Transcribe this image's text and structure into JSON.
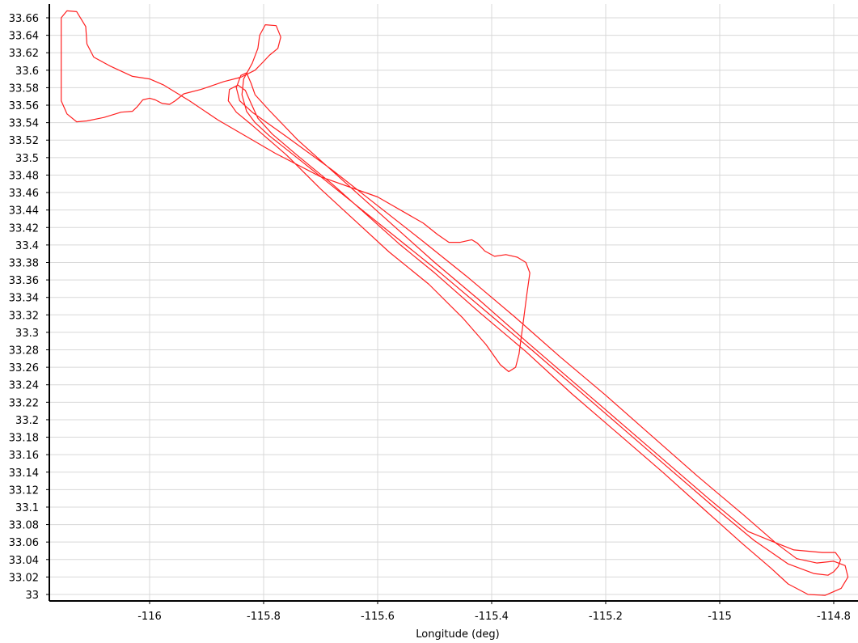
{
  "chart_data": {
    "type": "line",
    "title": "",
    "xlabel": "Longitude (deg)",
    "ylabel": "",
    "xlim": [
      -116.17,
      -114.77
    ],
    "ylim": [
      33.0,
      33.67
    ],
    "grid": true,
    "colors": {
      "series": "#ff2020",
      "grid": "#d8d8d8",
      "axis": "#000000"
    },
    "x_ticks": [
      -116,
      -115.8,
      -115.6,
      -115.4,
      -115.2,
      -115,
      -114.8
    ],
    "x_tick_labels": [
      "-116",
      "-115.8",
      "-115.6",
      "-115.4",
      "-115.2",
      "-115",
      "-114.8"
    ],
    "y_ticks": [
      33.0,
      33.02,
      33.04,
      33.06,
      33.08,
      33.1,
      33.12,
      33.14,
      33.16,
      33.18,
      33.2,
      33.22,
      33.24,
      33.26,
      33.28,
      33.3,
      33.32,
      33.34,
      33.36,
      33.38,
      33.4,
      33.42,
      33.44,
      33.46,
      33.48,
      33.5,
      33.52,
      33.54,
      33.56,
      33.58,
      33.6,
      33.62,
      33.64,
      33.66
    ],
    "y_tick_labels": [
      "33",
      "33.02",
      "33.04",
      "33.06",
      "33.08",
      "33.1",
      "33.12",
      "33.14",
      "33.16",
      "33.18",
      "33.2",
      "33.22",
      "33.24",
      "33.26",
      "33.28",
      "33.3",
      "33.32",
      "33.34",
      "33.36",
      "33.38",
      "33.4",
      "33.42",
      "33.44",
      "33.46",
      "33.48",
      "33.5",
      "33.52",
      "33.54",
      "33.56",
      "33.58",
      "33.6",
      "33.62",
      "33.64",
      "33.66"
    ],
    "series": [
      {
        "points": [
          [
            -116.155,
            33.64
          ],
          [
            -116.155,
            33.66
          ],
          [
            -116.145,
            33.668
          ],
          [
            -116.128,
            33.667
          ],
          [
            -116.112,
            33.65
          ],
          [
            -116.11,
            33.63
          ],
          [
            -116.098,
            33.615
          ],
          [
            -116.07,
            33.605
          ],
          [
            -116.03,
            33.593
          ],
          [
            -116.0,
            33.59
          ],
          [
            -115.975,
            33.583
          ],
          [
            -115.93,
            33.565
          ],
          [
            -115.88,
            33.543
          ],
          [
            -115.83,
            33.524
          ],
          [
            -115.78,
            33.505
          ],
          [
            -115.7,
            33.478
          ],
          [
            -115.6,
            33.455
          ],
          [
            -115.52,
            33.425
          ],
          [
            -115.495,
            33.412
          ],
          [
            -115.475,
            33.403
          ],
          [
            -115.455,
            33.403
          ],
          [
            -115.435,
            33.406
          ],
          [
            -115.425,
            33.402
          ],
          [
            -115.412,
            33.393
          ],
          [
            -115.395,
            33.387
          ],
          [
            -115.375,
            33.389
          ],
          [
            -115.355,
            33.386
          ],
          [
            -115.34,
            33.38
          ],
          [
            -115.333,
            33.368
          ],
          [
            -115.338,
            33.345
          ],
          [
            -115.345,
            33.31
          ],
          [
            -115.352,
            33.275
          ],
          [
            -115.358,
            33.26
          ],
          [
            -115.37,
            33.255
          ],
          [
            -115.385,
            33.263
          ],
          [
            -115.41,
            33.286
          ],
          [
            -115.45,
            33.316
          ],
          [
            -115.51,
            33.355
          ],
          [
            -115.58,
            33.392
          ],
          [
            -115.64,
            33.428
          ],
          [
            -115.7,
            33.464
          ],
          [
            -115.76,
            33.503
          ],
          [
            -115.82,
            33.537
          ],
          [
            -115.848,
            33.552
          ],
          [
            -115.862,
            33.565
          ],
          [
            -115.86,
            33.578
          ],
          [
            -115.845,
            33.583
          ],
          [
            -115.832,
            33.577
          ],
          [
            -115.822,
            33.562
          ],
          [
            -115.81,
            33.545
          ],
          [
            -115.785,
            33.527
          ],
          [
            -115.74,
            33.502
          ],
          [
            -115.68,
            33.47
          ],
          [
            -115.62,
            33.435
          ],
          [
            -115.56,
            33.4
          ],
          [
            -115.5,
            33.368
          ],
          [
            -115.42,
            33.322
          ],
          [
            -115.34,
            33.278
          ],
          [
            -115.26,
            33.23
          ],
          [
            -115.18,
            33.185
          ],
          [
            -115.1,
            33.14
          ],
          [
            -115.02,
            33.093
          ],
          [
            -114.96,
            33.058
          ],
          [
            -114.91,
            33.03
          ],
          [
            -114.88,
            33.012
          ],
          [
            -114.845,
            33.0
          ],
          [
            -114.815,
            32.999
          ],
          [
            -114.787,
            33.007
          ],
          [
            -114.775,
            33.02
          ],
          [
            -114.78,
            33.033
          ],
          [
            -114.8,
            33.038
          ],
          [
            -114.83,
            33.036
          ],
          [
            -114.865,
            33.041
          ],
          [
            -114.9,
            33.058
          ],
          [
            -114.96,
            33.092
          ],
          [
            -115.04,
            33.136
          ],
          [
            -115.12,
            33.182
          ],
          [
            -115.2,
            33.228
          ],
          [
            -115.28,
            33.272
          ],
          [
            -115.36,
            33.318
          ],
          [
            -115.44,
            33.362
          ],
          [
            -115.52,
            33.404
          ],
          [
            -115.6,
            33.445
          ],
          [
            -115.68,
            33.486
          ],
          [
            -115.76,
            33.524
          ],
          [
            -115.82,
            33.552
          ],
          [
            -115.842,
            33.565
          ],
          [
            -115.848,
            33.58
          ],
          [
            -115.84,
            33.594
          ],
          [
            -115.83,
            33.597
          ],
          [
            -115.822,
            33.585
          ],
          [
            -115.815,
            33.572
          ],
          [
            -115.79,
            33.554
          ],
          [
            -115.74,
            33.52
          ],
          [
            -115.68,
            33.485
          ],
          [
            -115.62,
            33.45
          ],
          [
            -115.56,
            33.415
          ],
          [
            -115.5,
            33.38
          ],
          [
            -115.42,
            33.336
          ],
          [
            -115.34,
            33.29
          ],
          [
            -115.26,
            33.245
          ],
          [
            -115.18,
            33.2
          ],
          [
            -115.1,
            33.155
          ],
          [
            -115.02,
            33.11
          ],
          [
            -114.95,
            33.072
          ],
          [
            -114.905,
            33.06
          ],
          [
            -114.87,
            33.051
          ],
          [
            -114.82,
            33.048
          ],
          [
            -114.797,
            33.048
          ],
          [
            -114.788,
            33.04
          ],
          [
            -114.792,
            33.032
          ],
          [
            -114.8,
            33.026
          ],
          [
            -114.81,
            33.022
          ],
          [
            -114.835,
            33.024
          ],
          [
            -114.88,
            33.035
          ],
          [
            -114.94,
            33.062
          ],
          [
            -115.01,
            33.1
          ],
          [
            -115.09,
            33.145
          ],
          [
            -115.17,
            33.19
          ],
          [
            -115.25,
            33.235
          ],
          [
            -115.33,
            33.28
          ],
          [
            -115.41,
            33.324
          ],
          [
            -115.49,
            33.368
          ],
          [
            -115.57,
            33.41
          ],
          [
            -115.65,
            33.452
          ],
          [
            -115.73,
            33.494
          ],
          [
            -115.79,
            33.525
          ],
          [
            -115.815,
            33.54
          ],
          [
            -115.83,
            33.553
          ],
          [
            -115.838,
            33.572
          ],
          [
            -115.835,
            33.59
          ],
          [
            -115.82,
            33.608
          ],
          [
            -115.81,
            33.625
          ],
          [
            -115.807,
            33.64
          ],
          [
            -115.797,
            33.652
          ],
          [
            -115.778,
            33.651
          ],
          [
            -115.77,
            33.638
          ],
          [
            -115.775,
            33.625
          ],
          [
            -115.79,
            33.617
          ],
          [
            -115.8,
            33.61
          ],
          [
            -115.815,
            33.6
          ],
          [
            -115.84,
            33.592
          ],
          [
            -115.87,
            33.587
          ],
          [
            -115.91,
            33.578
          ],
          [
            -115.94,
            33.573
          ],
          [
            -115.955,
            33.565
          ],
          [
            -115.965,
            33.561
          ],
          [
            -115.978,
            33.562
          ],
          [
            -115.99,
            33.566
          ],
          [
            -116.0,
            33.568
          ],
          [
            -116.012,
            33.566
          ],
          [
            -116.022,
            33.558
          ],
          [
            -116.03,
            33.553
          ],
          [
            -116.05,
            33.552
          ],
          [
            -116.08,
            33.546
          ],
          [
            -116.11,
            33.542
          ],
          [
            -116.128,
            33.541
          ],
          [
            -116.145,
            33.55
          ],
          [
            -116.155,
            33.565
          ],
          [
            -116.155,
            33.6
          ],
          [
            -116.155,
            33.625
          ],
          [
            -116.155,
            33.64
          ]
        ]
      }
    ]
  }
}
